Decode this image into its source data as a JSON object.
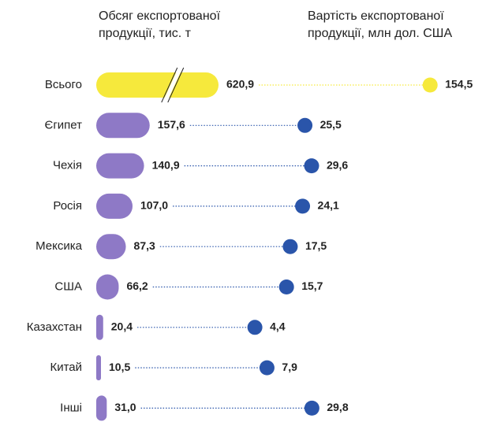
{
  "chart_data": {
    "type": "bar_dot",
    "categories": [
      "Всього",
      "Єгипет",
      "Чехія",
      "Росія",
      "Мексика",
      "США",
      "Казахстан",
      "Китай",
      "Інші"
    ],
    "total_color": "#f6e93c",
    "series": [
      {
        "name": "Обсяг експортованої продукції, тис. т",
        "color": "#8e79c6",
        "values": [
          620.9,
          157.6,
          140.9,
          107.0,
          87.3,
          66.2,
          20.4,
          10.5,
          31.0
        ],
        "value_labels": [
          "620,9",
          "157,6",
          "140,9",
          "107,0",
          "87,3",
          "66,2",
          "20,4",
          "10,5",
          "31,0"
        ]
      },
      {
        "name": "Вартість експортованої продукції, млн дол. США",
        "color": "#2a55aa",
        "values": [
          154.5,
          25.5,
          29.6,
          24.1,
          17.5,
          15.7,
          4.4,
          7.9,
          29.8
        ],
        "value_labels": [
          "154,5",
          "25,5",
          "29,6",
          "24,1",
          "17,5",
          "15,7",
          "4,4",
          "7,9",
          "29,8"
        ]
      }
    ]
  }
}
